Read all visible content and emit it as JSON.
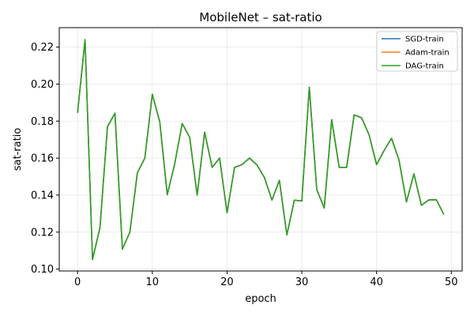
{
  "chart_data": {
    "type": "line",
    "title": "MobileNet – sat-ratio",
    "xlabel": "epoch",
    "ylabel": "sat-ratio",
    "xlim": [
      -2.45,
      51.45
    ],
    "ylim": [
      0.099,
      0.2305
    ],
    "xticks": [
      0,
      10,
      20,
      30,
      40,
      50
    ],
    "yticks": [
      0.1,
      0.12,
      0.14,
      0.16,
      0.18,
      0.2,
      0.22
    ],
    "xtick_labels": [
      "0",
      "10",
      "20",
      "30",
      "40",
      "50"
    ],
    "ytick_labels": [
      "0.10",
      "0.12",
      "0.14",
      "0.16",
      "0.18",
      "0.20",
      "0.22"
    ],
    "grid": true,
    "legend_position": "top-right",
    "x": [
      0,
      1,
      2,
      3,
      4,
      5,
      6,
      7,
      8,
      9,
      10,
      11,
      12,
      13,
      14,
      15,
      16,
      17,
      18,
      19,
      20,
      21,
      22,
      23,
      24,
      25,
      26,
      27,
      28,
      29,
      30,
      31,
      32,
      33,
      34,
      35,
      36,
      37,
      38,
      39,
      40,
      41,
      42,
      43,
      44,
      45,
      46,
      47,
      48,
      49
    ],
    "series": [
      {
        "name": "SGD-train",
        "color": "#1f77b4",
        "values": [
          0.1845,
          0.224,
          0.1052,
          0.1225,
          0.177,
          0.1843,
          0.1108,
          0.12,
          0.152,
          0.16,
          0.1945,
          0.1795,
          0.1402,
          0.157,
          0.1787,
          0.1712,
          0.14,
          0.174,
          0.155,
          0.16,
          0.1305,
          0.155,
          0.1565,
          0.16,
          0.1563,
          0.1495,
          0.1373,
          0.148,
          0.1185,
          0.1373,
          0.1368,
          0.1983,
          0.143,
          0.133,
          0.1808,
          0.155,
          0.155,
          0.1833,
          0.1818,
          0.1725,
          0.1565,
          0.164,
          0.1707,
          0.159,
          0.1363,
          0.1515,
          0.1345,
          0.1374,
          0.1375,
          0.1295
        ]
      },
      {
        "name": "Adam-train",
        "color": "#ff7f0e",
        "values": [
          0.1845,
          0.224,
          0.1052,
          0.1225,
          0.177,
          0.1843,
          0.1108,
          0.12,
          0.152,
          0.16,
          0.1945,
          0.1795,
          0.1402,
          0.157,
          0.1787,
          0.1712,
          0.14,
          0.174,
          0.155,
          0.16,
          0.1305,
          0.155,
          0.1565,
          0.16,
          0.1563,
          0.1495,
          0.1373,
          0.148,
          0.1185,
          0.1373,
          0.1368,
          0.1983,
          0.143,
          0.133,
          0.1808,
          0.155,
          0.155,
          0.1833,
          0.1818,
          0.1725,
          0.1565,
          0.164,
          0.1707,
          0.159,
          0.1363,
          0.1515,
          0.1345,
          0.1374,
          0.1375,
          0.1295
        ]
      },
      {
        "name": "DAG-train",
        "color": "#2ca02c",
        "values": [
          0.1845,
          0.224,
          0.1052,
          0.1225,
          0.177,
          0.1843,
          0.1108,
          0.12,
          0.152,
          0.16,
          0.1945,
          0.1795,
          0.1402,
          0.157,
          0.1787,
          0.1712,
          0.14,
          0.174,
          0.155,
          0.16,
          0.1305,
          0.155,
          0.1565,
          0.16,
          0.1563,
          0.1495,
          0.1373,
          0.148,
          0.1185,
          0.1373,
          0.1368,
          0.1983,
          0.143,
          0.133,
          0.1808,
          0.155,
          0.155,
          0.1833,
          0.1818,
          0.1725,
          0.1565,
          0.164,
          0.1707,
          0.159,
          0.1363,
          0.1515,
          0.1345,
          0.1374,
          0.1375,
          0.1295
        ]
      }
    ]
  }
}
